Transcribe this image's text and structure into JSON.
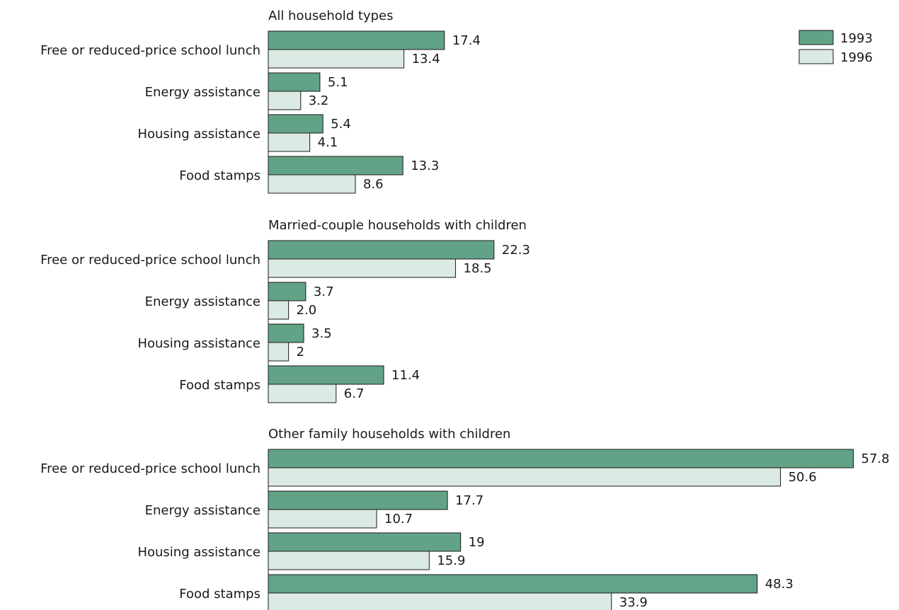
{
  "colors": {
    "bar_1993": "#62a387",
    "bar_1996": "#dbeae3",
    "stroke": "#1a1a1a"
  },
  "legend": {
    "items": [
      "1993",
      "1996"
    ],
    "position": "top-right"
  },
  "chart_data": {
    "type": "bar",
    "orientation": "horizontal",
    "categories": [
      "Free or reduced-price school lunch",
      "Energy assistance",
      "Housing assistance",
      "Food stamps"
    ],
    "series_names": [
      "1993",
      "1996"
    ],
    "panels": [
      {
        "title": "All household types",
        "series": [
          {
            "name": "1993",
            "values": [
              17.4,
              5.1,
              5.4,
              13.3
            ],
            "labels": [
              "17.4",
              "5.1",
              "5.4",
              "13.3"
            ]
          },
          {
            "name": "1996",
            "values": [
              13.4,
              3.2,
              4.1,
              8.6
            ],
            "labels": [
              "13.4",
              "3.2",
              "4.1",
              "8.6"
            ]
          }
        ]
      },
      {
        "title": "Married-couple households with children",
        "series": [
          {
            "name": "1993",
            "values": [
              22.3,
              3.7,
              3.5,
              11.4
            ],
            "labels": [
              "22.3",
              "3.7",
              "3.5",
              "11.4"
            ]
          },
          {
            "name": "1996",
            "values": [
              18.5,
              2.0,
              2,
              6.7
            ],
            "labels": [
              "18.5",
              "2.0",
              "2",
              "6.7"
            ]
          }
        ]
      },
      {
        "title": "Other family households with children",
        "series": [
          {
            "name": "1993",
            "values": [
              57.8,
              17.7,
              19,
              48.3
            ],
            "labels": [
              "57.8",
              "17.7",
              "19",
              "48.3"
            ]
          },
          {
            "name": "1996",
            "values": [
              50.6,
              10.7,
              15.9,
              33.9
            ],
            "labels": [
              "50.6",
              "10.7",
              "15.9",
              "33.9"
            ]
          }
        ]
      }
    ]
  }
}
